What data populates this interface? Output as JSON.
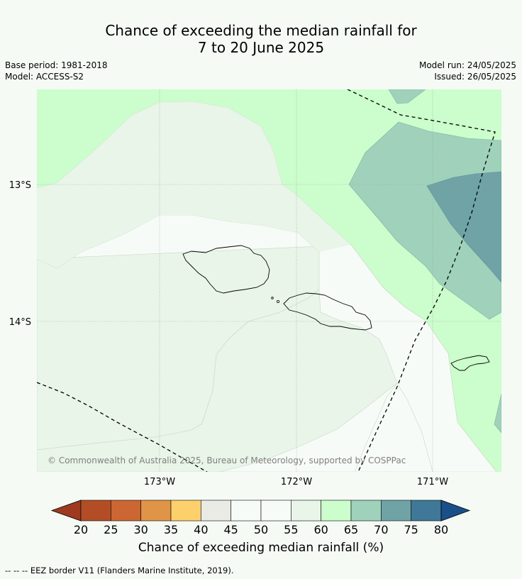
{
  "title": {
    "line1": "Chance of exceeding the median rainfall for",
    "line2": "7 to 20 June 2025"
  },
  "meta": {
    "base_period": "Base period: 1981-2018",
    "model": "Model: ACCESS-S2",
    "model_run": "Model run: 24/05/2025",
    "issued": "Issued: 26/05/2025"
  },
  "map": {
    "lat_labels": [
      "13°S",
      "14°S"
    ],
    "lon_labels": [
      "173°W",
      "172°W",
      "171°W"
    ],
    "copyright": "© Commonwealth of Australia 2025, Bureau of Meteorology, supported by COSPPac"
  },
  "colorbar": {
    "ticks": [
      "20",
      "25",
      "30",
      "35",
      "40",
      "45",
      "50",
      "55",
      "60",
      "65",
      "70",
      "75",
      "80"
    ],
    "colors": [
      "#9e3a1f",
      "#b34d26",
      "#cc6633",
      "#e09447",
      "#fdd06b",
      "#ebebe6",
      "#f7fbf7",
      "#f7fbf7",
      "#e8f5e8",
      "#ccfdcc",
      "#9fd1bb",
      "#6fa3a5",
      "#3f7898",
      "#19508a"
    ],
    "title": "Chance of exceeding median rainfall (%)"
  },
  "footnote": "-- -- -- EEZ border V11 (Flanders Marine Institute, 2019).",
  "colors": {
    "page_bg": "#f5faf5",
    "c45_55": "#f7fbf7",
    "c55_60": "#e8f5e8",
    "c60_65": "#ccfdcc",
    "c65_70": "#9fd1bb",
    "c70_75": "#6fa3a5"
  }
}
